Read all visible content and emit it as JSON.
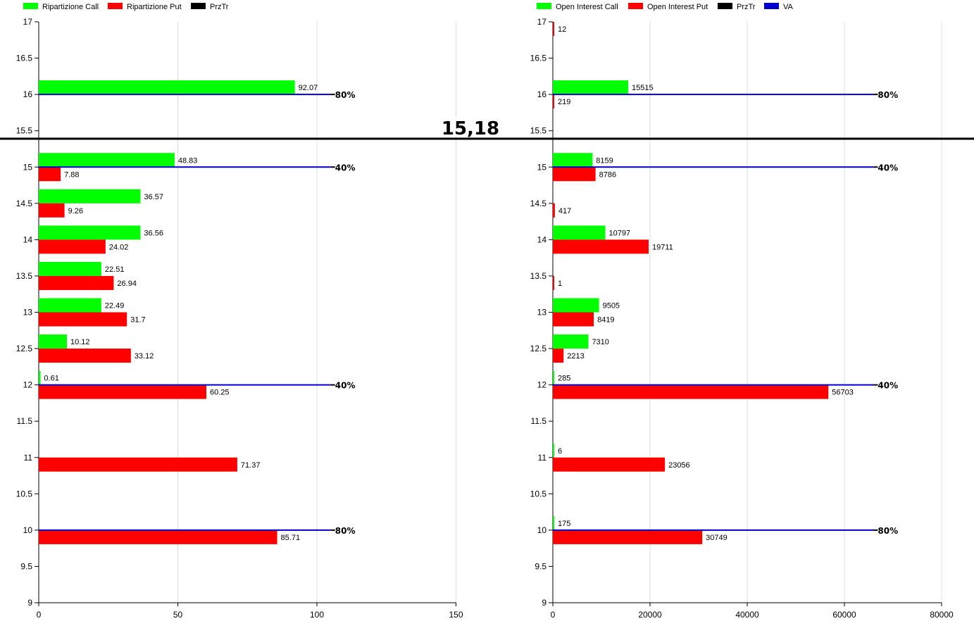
{
  "current_price": "15,18",
  "colors": {
    "call": "#00ff00",
    "put": "#ff0000",
    "przTr": "#000000",
    "va": "#0000cc",
    "grid": "#dcdcdc",
    "axis": "#000000"
  },
  "chart_data": [
    {
      "type": "bar",
      "orientation": "horizontal",
      "legend": [
        {
          "label": "Ripartizione Call",
          "color": "#00ff00"
        },
        {
          "label": "Ripartizione Put",
          "color": "#ff0000"
        },
        {
          "label": "PrzTr",
          "color": "#000000"
        }
      ],
      "legend_position": "top-left",
      "y_ticks": [
        "17",
        "16.5",
        "16",
        "15.5",
        "15",
        "14.5",
        "14",
        "13.5",
        "13",
        "12.5",
        "12",
        "11.5",
        "11",
        "10.5",
        "10",
        "9.5",
        "9"
      ],
      "x_ticks": [
        "0",
        "50",
        "100",
        "150"
      ],
      "xlim": [
        0,
        150
      ],
      "ylim": [
        9,
        17
      ],
      "grid": "vertical",
      "series": [
        {
          "name": "Ripartizione Call",
          "points": [
            {
              "y": 16,
              "v": 92.07
            },
            {
              "y": 15,
              "v": 48.83
            },
            {
              "y": 14.5,
              "v": 36.57
            },
            {
              "y": 14,
              "v": 36.56
            },
            {
              "y": 13.5,
              "v": 22.51
            },
            {
              "y": 13,
              "v": 22.49
            },
            {
              "y": 12.5,
              "v": 10.12
            },
            {
              "y": 12,
              "v": 0.61
            }
          ]
        },
        {
          "name": "Ripartizione Put",
          "points": [
            {
              "y": 15,
              "v": 7.88
            },
            {
              "y": 14.5,
              "v": 9.26
            },
            {
              "y": 14,
              "v": 24.02
            },
            {
              "y": 13.5,
              "v": 26.94
            },
            {
              "y": 13,
              "v": 31.7
            },
            {
              "y": 12.5,
              "v": 33.12
            },
            {
              "y": 12,
              "v": 60.25
            },
            {
              "y": 11,
              "v": 71.37
            },
            {
              "y": 10,
              "v": 85.71
            }
          ]
        }
      ],
      "va_lines": [
        {
          "y": 16,
          "end": 105,
          "label": "80%"
        },
        {
          "y": 15,
          "end": 105,
          "label": "40%"
        },
        {
          "y": 12,
          "end": 105,
          "label": "40%"
        },
        {
          "y": 10,
          "end": 105,
          "label": "80%"
        }
      ]
    },
    {
      "type": "bar",
      "orientation": "horizontal",
      "legend": [
        {
          "label": "Open Interest Call",
          "color": "#00ff00"
        },
        {
          "label": "Open Interest Put",
          "color": "#ff0000"
        },
        {
          "label": "PrzTr",
          "color": "#000000"
        },
        {
          "label": "VA",
          "color": "#0000cc"
        }
      ],
      "legend_position": "top-left",
      "y_ticks": [
        "17",
        "16.5",
        "16",
        "15.5",
        "15",
        "14.5",
        "14",
        "13.5",
        "13",
        "12.5",
        "12",
        "11.5",
        "11",
        "10.5",
        "10",
        "9.5",
        "9"
      ],
      "x_ticks": [
        "0",
        "20000",
        "40000",
        "60000",
        "80000"
      ],
      "xlim": [
        0,
        80000
      ],
      "ylim": [
        9,
        17
      ],
      "grid": "vertical",
      "series": [
        {
          "name": "Open Interest Call",
          "points": [
            {
              "y": 16,
              "v": 15515
            },
            {
              "y": 15,
              "v": 8159
            },
            {
              "y": 14,
              "v": 10797
            },
            {
              "y": 13,
              "v": 9505
            },
            {
              "y": 12.5,
              "v": 7310
            },
            {
              "y": 12,
              "v": 285
            },
            {
              "y": 11,
              "v": 6
            },
            {
              "y": 10,
              "v": 175
            }
          ]
        },
        {
          "name": "Open Interest Put",
          "points": [
            {
              "y": 17,
              "v": 12
            },
            {
              "y": 16,
              "v": 219
            },
            {
              "y": 15,
              "v": 8786
            },
            {
              "y": 14.5,
              "v": 417
            },
            {
              "y": 14,
              "v": 19711
            },
            {
              "y": 13.5,
              "v": 1
            },
            {
              "y": 13,
              "v": 8419
            },
            {
              "y": 12.5,
              "v": 2213
            },
            {
              "y": 12,
              "v": 56703
            },
            {
              "y": 11,
              "v": 23056
            },
            {
              "y": 10,
              "v": 30749
            }
          ]
        }
      ],
      "va_lines": [
        {
          "y": 16,
          "end": 66000,
          "label": "80%"
        },
        {
          "y": 15,
          "end": 66000,
          "label": "40%"
        },
        {
          "y": 12,
          "end": 66000,
          "label": "40%"
        },
        {
          "y": 10,
          "end": 66000,
          "label": "80%"
        }
      ]
    }
  ]
}
